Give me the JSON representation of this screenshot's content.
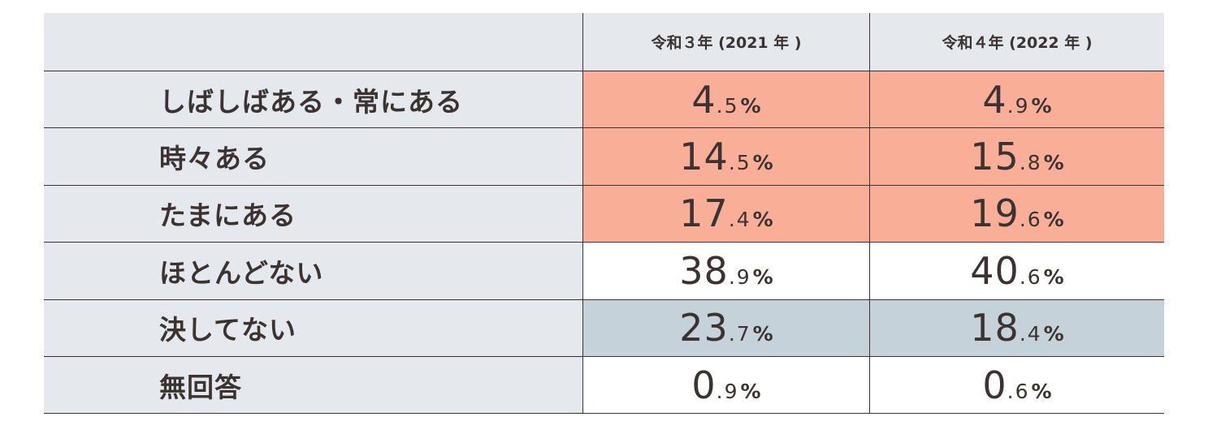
{
  "chart_data": {
    "type": "table",
    "columns": [
      "令和３年 (2021 年 )",
      "令和４年 (2022 年 )"
    ],
    "rows": [
      {
        "label": "しばしばある・常にある",
        "values": [
          "4",
          "4"
        ],
        "decimals": [
          ".5",
          ".9"
        ],
        "numeric": [
          4.5,
          4.9
        ],
        "level": "high"
      },
      {
        "label": "時々ある",
        "values": [
          "14",
          "15"
        ],
        "decimals": [
          ".5",
          ".8"
        ],
        "numeric": [
          14.5,
          15.8
        ],
        "level": "high"
      },
      {
        "label": "たまにある",
        "values": [
          "17",
          "19"
        ],
        "decimals": [
          ".4",
          ".6"
        ],
        "numeric": [
          17.4,
          19.6
        ],
        "level": "high"
      },
      {
        "label": "ほとんどない",
        "values": [
          "38",
          "40"
        ],
        "decimals": [
          ".9",
          ".6"
        ],
        "numeric": [
          38.9,
          40.6
        ],
        "level": "neutral"
      },
      {
        "label": "決してない",
        "values": [
          "23",
          "18"
        ],
        "decimals": [
          ".7",
          ".4"
        ],
        "numeric": [
          23.7,
          18.4
        ],
        "level": "low"
      },
      {
        "label": "無回答",
        "values": [
          "0",
          "0"
        ],
        "decimals": [
          ".9",
          ".6"
        ],
        "numeric": [
          0.9,
          0.6
        ],
        "level": "neutral"
      }
    ],
    "unit": "%"
  },
  "colors": {
    "high": "#f9ae98",
    "low": "#c6d2da",
    "neutral": "#ffffff",
    "header": "#e5e9ed",
    "text": "#3a3331"
  }
}
